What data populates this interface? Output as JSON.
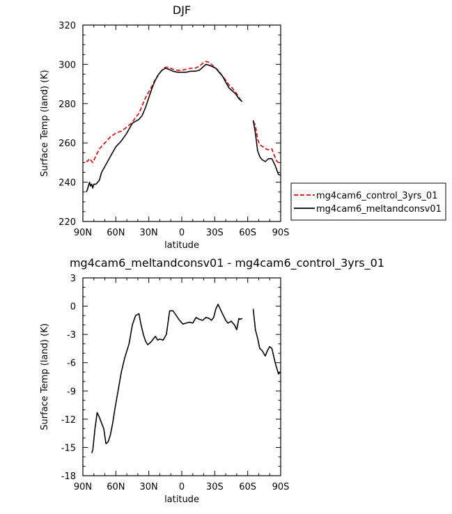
{
  "chart_data": [
    {
      "type": "line",
      "title": "DJF",
      "xlabel": "latitude",
      "ylabel": "Surface Temp (land) (K)",
      "xlim": [
        90,
        -90
      ],
      "ylim": [
        220,
        320
      ],
      "x_ticks": [
        {
          "v": 90,
          "label": "90N"
        },
        {
          "v": 60,
          "label": "60N"
        },
        {
          "v": 30,
          "label": "30N"
        },
        {
          "v": 0,
          "label": "0"
        },
        {
          "v": -30,
          "label": "30S"
        },
        {
          "v": -60,
          "label": "60S"
        },
        {
          "v": -90,
          "label": "90S"
        }
      ],
      "y_ticks": [
        {
          "v": 220,
          "label": "220"
        },
        {
          "v": 240,
          "label": "240"
        },
        {
          "v": 260,
          "label": "260"
        },
        {
          "v": 280,
          "label": "280"
        },
        {
          "v": 300,
          "label": "300"
        },
        {
          "v": 320,
          "label": "320"
        }
      ],
      "legend_position": "right",
      "series": [
        {
          "name": "mg4cam6_control_3yrs_01",
          "color": "#e00000",
          "dash": "dashed",
          "segments": [
            [
              [
                -54,
                281.5
              ],
              [
                -50,
                285
              ],
              [
                -46,
                288
              ],
              [
                -43,
                289.5
              ],
              [
                -40,
                292
              ],
              [
                -37,
                294
              ],
              [
                -34,
                296.5
              ],
              [
                -31,
                298
              ],
              [
                -28,
                299.5
              ],
              [
                -25,
                301
              ],
              [
                -22,
                301.5
              ],
              [
                -19,
                300.5
              ],
              [
                -16,
                299
              ],
              [
                -12,
                298
              ],
              [
                -8,
                298
              ],
              [
                -4,
                297.5
              ],
              [
                0,
                297
              ],
              [
                4,
                297
              ],
              [
                8,
                297.5
              ],
              [
                12,
                298.5
              ],
              [
                15,
                298.5
              ],
              [
                18,
                297
              ],
              [
                21,
                295
              ],
              [
                24,
                292.5
              ],
              [
                27,
                289
              ],
              [
                30,
                286
              ],
              [
                33,
                283
              ],
              [
                36,
                279
              ],
              [
                39,
                275
              ],
              [
                42,
                273
              ],
              [
                45,
                270.5
              ],
              [
                50,
                268
              ],
              [
                55,
                266
              ],
              [
                60,
                265
              ],
              [
                65,
                263
              ],
              [
                70,
                260
              ],
              [
                75,
                257
              ],
              [
                78,
                253.5
              ],
              [
                81,
                250
              ],
              [
                84,
                252
              ],
              [
                86,
                250.5
              ],
              [
                87,
                251
              ]
            ],
            [
              [
                -65,
                271
              ],
              [
                -67,
                269
              ],
              [
                -69,
                262
              ],
              [
                -71,
                259
              ],
              [
                -74,
                258
              ],
              [
                -78,
                256.5
              ],
              [
                -82,
                257
              ],
              [
                -86,
                251
              ],
              [
                -88,
                250
              ],
              [
                -90,
                250
              ]
            ]
          ]
        },
        {
          "name": "mg4cam6_meltandconsv01",
          "color": "#000000",
          "dash": "solid",
          "segments": [
            [
              [
                -55,
                281
              ],
              [
                -52,
                282.5
              ],
              [
                -49,
                285
              ],
              [
                -46,
                286.5
              ],
              [
                -43,
                288
              ],
              [
                -40,
                291
              ],
              [
                -37,
                294
              ],
              [
                -34,
                296
              ],
              [
                -31,
                298
              ],
              [
                -28,
                298.8
              ],
              [
                -25,
                299.5
              ],
              [
                -22,
                300
              ],
              [
                -19,
                298.5
              ],
              [
                -16,
                297
              ],
              [
                -12,
                296.5
              ],
              [
                -8,
                296.5
              ],
              [
                -4,
                296
              ],
              [
                0,
                296
              ],
              [
                4,
                296
              ],
              [
                8,
                296.5
              ],
              [
                12,
                297.5
              ],
              [
                15,
                298
              ],
              [
                18,
                297
              ],
              [
                21,
                295
              ],
              [
                24,
                292
              ],
              [
                27,
                288
              ],
              [
                30,
                283
              ],
              [
                33,
                278
              ],
              [
                36,
                274
              ],
              [
                39,
                272
              ],
              [
                42,
                271
              ],
              [
                45,
                270
              ],
              [
                50,
                265
              ],
              [
                55,
                261
              ],
              [
                60,
                258
              ],
              [
                65,
                253
              ],
              [
                70,
                248
              ],
              [
                73,
                245
              ],
              [
                75,
                241
              ],
              [
                78,
                239
              ],
              [
                80,
                239
              ],
              [
                81,
                237
              ],
              [
                82,
                239
              ],
              [
                83,
                238
              ],
              [
                84,
                240
              ],
              [
                86,
                236
              ],
              [
                87,
                235
              ]
            ],
            [
              [
                -65,
                271.5
              ],
              [
                -67,
                265
              ],
              [
                -69,
                256
              ],
              [
                -71,
                253
              ],
              [
                -73,
                251.5
              ],
              [
                -76,
                250.5
              ],
              [
                -79,
                252
              ],
              [
                -82,
                252
              ],
              [
                -85,
                248.5
              ],
              [
                -88,
                244
              ],
              [
                -90,
                243.5
              ]
            ]
          ]
        }
      ]
    },
    {
      "type": "line",
      "title": "mg4cam6_meltandconsv01 - mg4cam6_control_3yrs_01",
      "xlabel": "latitude",
      "ylabel": "Surface Temp (land) (K)",
      "xlim": [
        90,
        -90
      ],
      "ylim": [
        -18,
        3
      ],
      "x_ticks": [
        {
          "v": 90,
          "label": "90N"
        },
        {
          "v": 60,
          "label": "60N"
        },
        {
          "v": 30,
          "label": "30N"
        },
        {
          "v": 0,
          "label": "0"
        },
        {
          "v": -30,
          "label": "30S"
        },
        {
          "v": -60,
          "label": "60S"
        },
        {
          "v": -90,
          "label": "90S"
        }
      ],
      "y_ticks": [
        {
          "v": 3,
          "label": "3"
        },
        {
          "v": 0,
          "label": "0"
        },
        {
          "v": -3,
          "label": "-3"
        },
        {
          "v": -6,
          "label": "-6"
        },
        {
          "v": -9,
          "label": "-9"
        },
        {
          "v": -12,
          "label": "-12"
        },
        {
          "v": -15,
          "label": "-15"
        },
        {
          "v": -18,
          "label": "-18"
        }
      ],
      "series": [
        {
          "color": "#000000",
          "dash": "solid",
          "segments": [
            [
              [
                -55,
                -1.3
              ],
              [
                -53,
                -1.4
              ],
              [
                -52,
                -1.3
              ],
              [
                -50,
                -2.5
              ],
              [
                -48,
                -2
              ],
              [
                -45,
                -1.6
              ],
              [
                -42,
                -1.8
              ],
              [
                -40,
                -1.5
              ],
              [
                -37,
                -0.8
              ],
              [
                -35,
                -0.3
              ],
              [
                -33,
                0.2
              ],
              [
                -31,
                -0.3
              ],
              [
                -29,
                -1.2
              ],
              [
                -27,
                -1.5
              ],
              [
                -25,
                -1.3
              ],
              [
                -22,
                -1.2
              ],
              [
                -19,
                -1.5
              ],
              [
                -16,
                -1.4
              ],
              [
                -13,
                -1.2
              ],
              [
                -10,
                -1.8
              ],
              [
                -7,
                -1.7
              ],
              [
                -4,
                -1.8
              ],
              [
                -1,
                -1.9
              ],
              [
                2,
                -1.5
              ],
              [
                5,
                -1
              ],
              [
                8,
                -0.5
              ],
              [
                11,
                -0.5
              ],
              [
                14,
                -3
              ],
              [
                17,
                -3.6
              ],
              [
                20,
                -3.5
              ],
              [
                22,
                -3.6
              ],
              [
                24,
                -3.2
              ],
              [
                26,
                -3.5
              ],
              [
                28,
                -3.8
              ],
              [
                31,
                -4.1
              ],
              [
                33,
                -3.7
              ],
              [
                35,
                -3
              ],
              [
                37,
                -2
              ],
              [
                39,
                -0.8
              ],
              [
                42,
                -1
              ],
              [
                45,
                -2
              ],
              [
                48,
                -4
              ],
              [
                52,
                -5.5
              ],
              [
                55,
                -7
              ],
              [
                58,
                -9
              ],
              [
                61,
                -11
              ],
              [
                63,
                -12.5
              ],
              [
                65,
                -13.7
              ],
              [
                67,
                -14.4
              ],
              [
                69,
                -14.6
              ],
              [
                71,
                -13
              ],
              [
                73,
                -12.4
              ],
              [
                75,
                -11.8
              ],
              [
                77,
                -11.3
              ],
              [
                79,
                -13
              ],
              [
                81,
                -15.3
              ],
              [
                82,
                -15.6
              ]
            ],
            [
              [
                -65,
                -0.3
              ],
              [
                -67,
                -2.5
              ],
              [
                -69,
                -3.4
              ],
              [
                -71,
                -4.5
              ],
              [
                -73,
                -4.7
              ],
              [
                -76,
                -5.3
              ],
              [
                -78,
                -4.7
              ],
              [
                -80,
                -4.3
              ],
              [
                -82,
                -4.5
              ],
              [
                -85,
                -6
              ],
              [
                -88,
                -7.2
              ],
              [
                -90,
                -7
              ]
            ]
          ]
        }
      ]
    }
  ]
}
